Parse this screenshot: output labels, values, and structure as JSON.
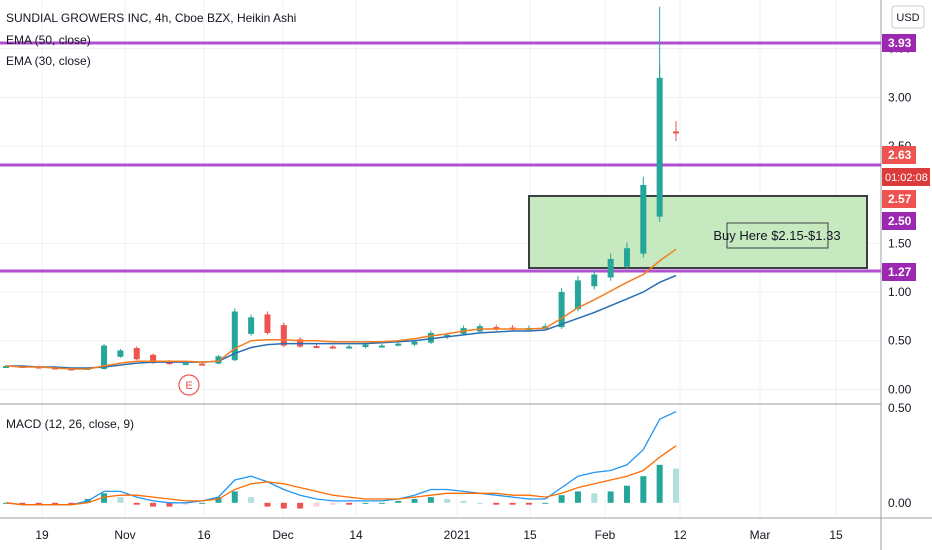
{
  "header": {
    "title": "SUNDIAL GROWERS INC, 4h, Cboe BZX, Heikin Ashi",
    "indicators": [
      "EMA (50, close)",
      "EMA (30, close)"
    ],
    "macd_title": "MACD (12, 26, close, 9)",
    "currency": "USD"
  },
  "badges": {
    "level_393": "3.93",
    "price_263": "2.63",
    "countdown": "01:02:08",
    "price_257": "2.57",
    "level_250": "2.50",
    "level_127": "1.27"
  },
  "annotation": {
    "buy_zone_text": "Buy Here $2.15-$1.33",
    "buy_zone_low": 1.33,
    "buy_zone_high": 2.15,
    "earnings_marker": "E"
  },
  "colors": {
    "up": "#26a69a",
    "down": "#ef5350",
    "level_line": "#b04fcf",
    "ema50": "#2b6fb3",
    "ema30": "#f57c20",
    "macd_line": "#2196f3",
    "signal_line": "#ff6d00",
    "buy_zone_fill": "#c7e9c0",
    "countdown_bg": "#dc3b3b"
  },
  "chart_data": [
    {
      "type": "candlestick",
      "title": "SUNDIAL GROWERS INC, 4h, Cboe BZX, Heikin Ashi",
      "ylim": [
        -0.15,
        4.0
      ],
      "y_ticks": [
        "0.00",
        "0.50",
        "1.00",
        "1.50",
        "2.50",
        "3.00",
        "3.50"
      ],
      "x_ticks": [
        "19",
        "Nov",
        "16",
        "Dec",
        "14",
        "2021",
        "15",
        "Feb",
        "12",
        "Mar",
        "15"
      ],
      "horizontal_levels": [
        3.93,
        2.5,
        1.27
      ],
      "close_series": [
        0.24,
        0.23,
        0.22,
        0.21,
        0.2,
        0.22,
        0.45,
        0.4,
        0.31,
        0.27,
        0.26,
        0.27,
        0.26,
        0.34,
        0.8,
        0.74,
        0.58,
        0.45,
        0.44,
        0.44,
        0.43,
        0.44,
        0.46,
        0.45,
        0.47,
        0.49,
        0.58,
        0.56,
        0.63,
        0.65,
        0.62,
        0.62,
        0.63,
        0.65,
        1.0,
        1.12,
        1.18,
        1.34,
        1.45,
        2.1,
        3.2,
        2.63
      ],
      "ema50": [
        0.24,
        0.24,
        0.23,
        0.23,
        0.22,
        0.22,
        0.23,
        0.25,
        0.27,
        0.28,
        0.28,
        0.28,
        0.28,
        0.29,
        0.37,
        0.43,
        0.46,
        0.47,
        0.47,
        0.47,
        0.47,
        0.47,
        0.47,
        0.48,
        0.49,
        0.5,
        0.52,
        0.54,
        0.56,
        0.58,
        0.59,
        0.6,
        0.6,
        0.61,
        0.67,
        0.73,
        0.79,
        0.86,
        0.93,
        1.0,
        1.1,
        1.17
      ],
      "ema30": [
        0.24,
        0.23,
        0.23,
        0.22,
        0.21,
        0.21,
        0.24,
        0.27,
        0.29,
        0.29,
        0.29,
        0.29,
        0.28,
        0.29,
        0.42,
        0.5,
        0.51,
        0.51,
        0.5,
        0.5,
        0.49,
        0.49,
        0.49,
        0.49,
        0.5,
        0.52,
        0.55,
        0.57,
        0.6,
        0.62,
        0.62,
        0.62,
        0.62,
        0.63,
        0.73,
        0.84,
        0.92,
        1.01,
        1.1,
        1.18,
        1.32,
        1.44
      ]
    },
    {
      "type": "bar",
      "title": "MACD (12, 26, close, 9)",
      "ylim": [
        -0.08,
        0.52
      ],
      "y_ticks": [
        "0.50",
        "0.00"
      ],
      "histogram": [
        0.0,
        -0.01,
        -0.01,
        -0.01,
        -0.01,
        0.02,
        0.05,
        0.03,
        -0.01,
        -0.02,
        -0.02,
        -0.01,
        0.0,
        0.03,
        0.06,
        0.03,
        -0.02,
        -0.03,
        -0.03,
        -0.02,
        -0.01,
        -0.01,
        0.0,
        0.0,
        0.01,
        0.02,
        0.03,
        0.02,
        0.01,
        0.0,
        -0.01,
        -0.01,
        -0.01,
        0.0,
        0.04,
        0.06,
        0.05,
        0.06,
        0.09,
        0.14,
        0.2,
        0.18
      ],
      "macd": [
        0.0,
        -0.01,
        -0.01,
        -0.01,
        -0.01,
        0.01,
        0.06,
        0.06,
        0.03,
        0.01,
        0.0,
        0.0,
        0.01,
        0.03,
        0.12,
        0.14,
        0.11,
        0.07,
        0.04,
        0.02,
        0.01,
        0.01,
        0.01,
        0.01,
        0.02,
        0.04,
        0.07,
        0.07,
        0.06,
        0.05,
        0.04,
        0.03,
        0.02,
        0.02,
        0.08,
        0.14,
        0.16,
        0.17,
        0.2,
        0.28,
        0.44,
        0.48
      ],
      "signal": [
        0.0,
        -0.01,
        -0.01,
        -0.01,
        -0.01,
        0.0,
        0.03,
        0.04,
        0.04,
        0.03,
        0.02,
        0.01,
        0.01,
        0.02,
        0.07,
        0.1,
        0.11,
        0.1,
        0.08,
        0.06,
        0.04,
        0.03,
        0.02,
        0.02,
        0.02,
        0.03,
        0.04,
        0.05,
        0.05,
        0.05,
        0.05,
        0.04,
        0.04,
        0.03,
        0.05,
        0.08,
        0.1,
        0.12,
        0.14,
        0.17,
        0.24,
        0.3
      ]
    }
  ]
}
